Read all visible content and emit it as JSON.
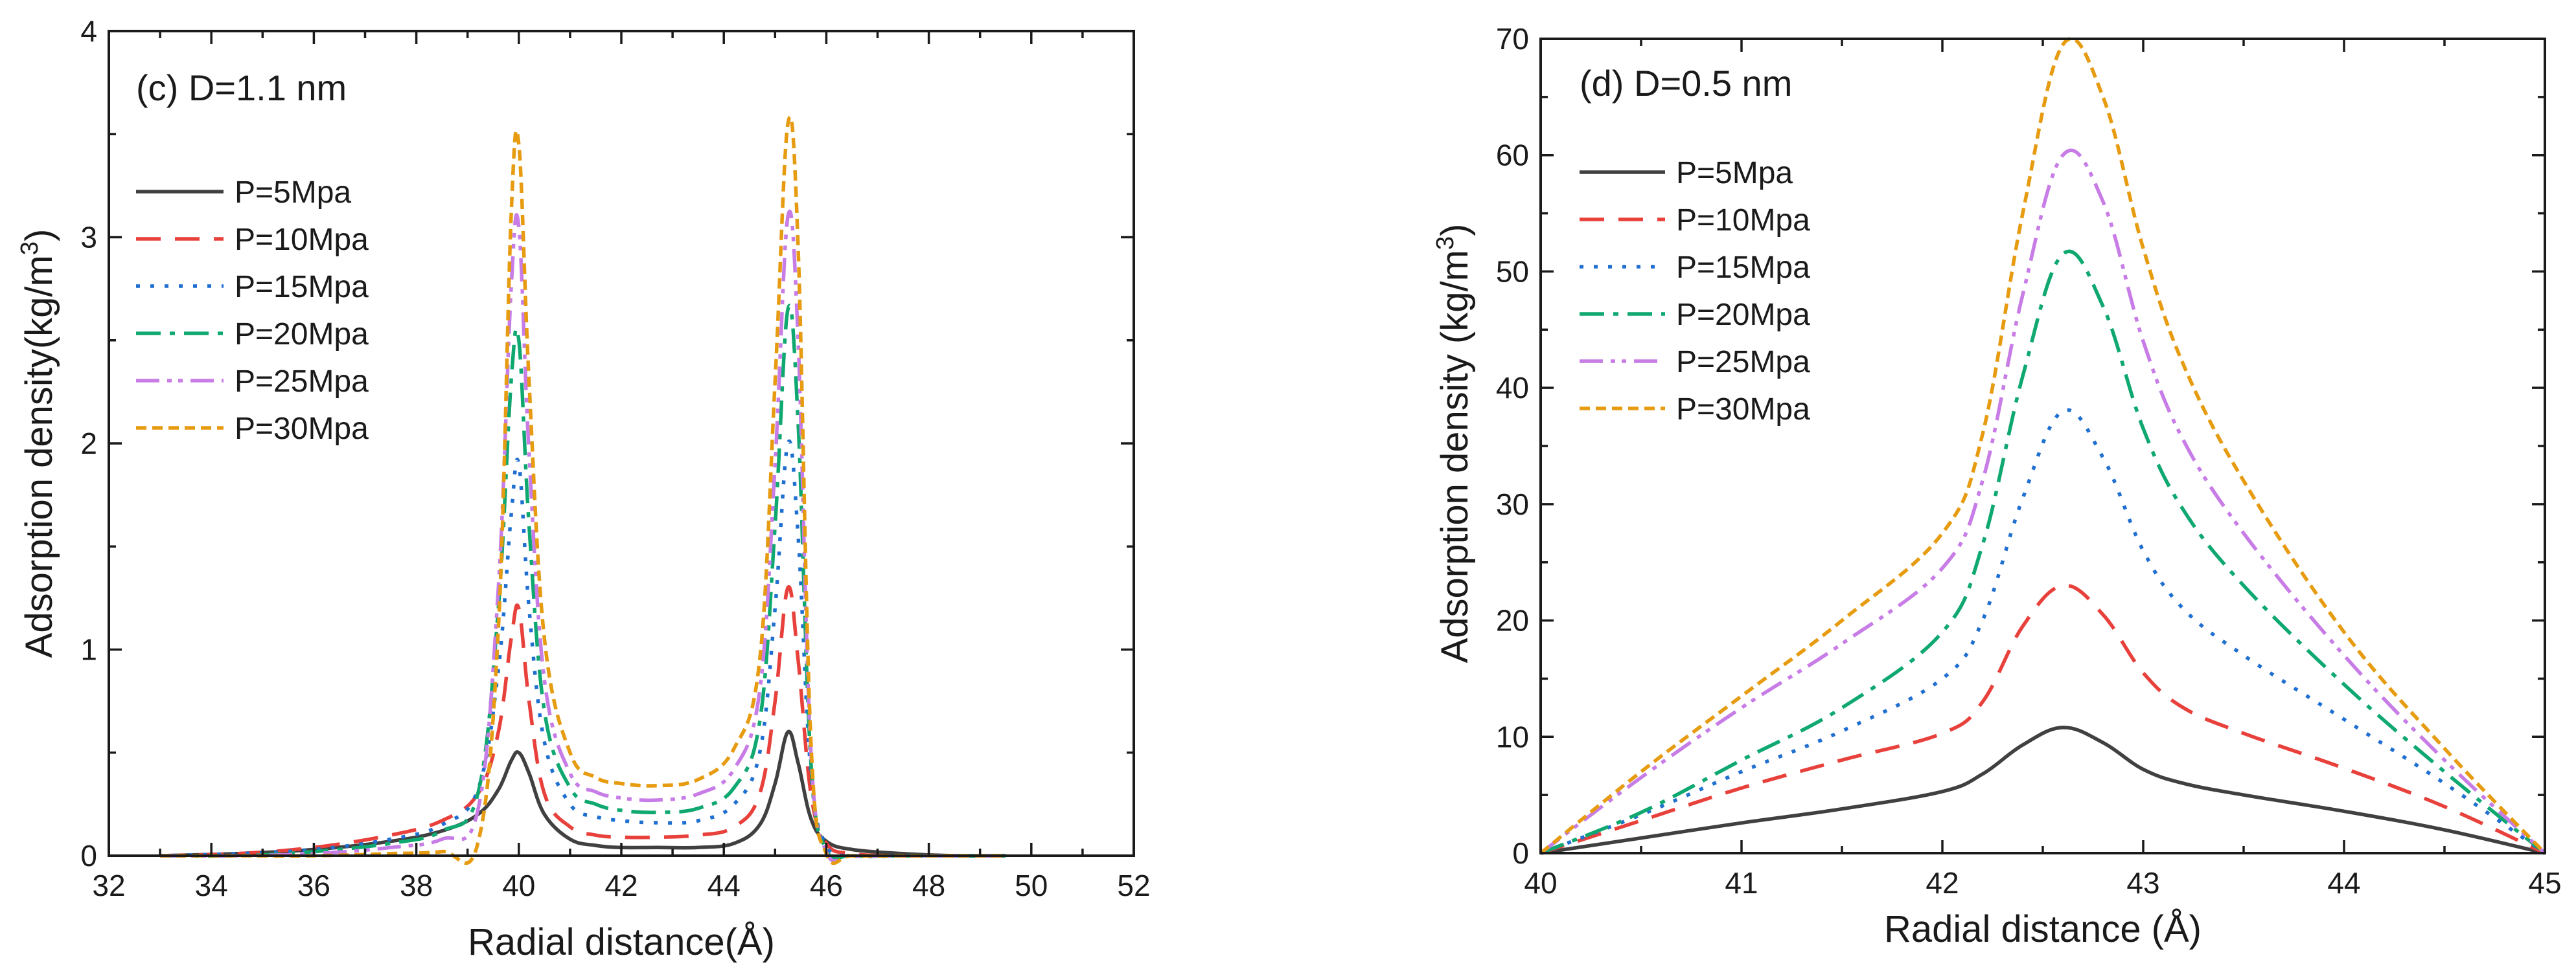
{
  "chart_data": [
    {
      "id": "c",
      "type": "line",
      "title": "(c) D=1.1 nm",
      "xlabel": "Radial distance(Å)",
      "ylabel": "Adsorption density(kg/m",
      "ylabel_sup": "3",
      "ylabel_tail": ")",
      "xlim": [
        32,
        52
      ],
      "ylim": [
        0,
        4
      ],
      "xticks": [
        32,
        34,
        36,
        38,
        40,
        42,
        44,
        46,
        48,
        50,
        52
      ],
      "yticks": [
        0,
        1,
        2,
        3,
        4
      ],
      "xtick_labels": [
        "32",
        "34",
        "36",
        "38",
        "40",
        "42",
        "44",
        "46",
        "48",
        "50",
        "52"
      ],
      "ytick_labels": [
        "0",
        "1",
        "2",
        "3",
        "4"
      ],
      "legend_position": "upper-left",
      "series": [
        {
          "name": "P=5Mpa",
          "color": "#404040",
          "x": [
            33.0,
            34.5,
            36.0,
            37.5,
            38.5,
            39.2,
            39.6,
            39.85,
            40.0,
            40.2,
            40.5,
            41.0,
            41.5,
            42.0,
            42.7,
            43.5,
            44.2,
            44.7,
            45.0,
            45.25,
            45.45,
            45.7,
            46.0,
            46.5,
            47.5,
            48.5,
            49.5
          ],
          "y": [
            0.0,
            0.01,
            0.03,
            0.07,
            0.12,
            0.2,
            0.32,
            0.46,
            0.5,
            0.4,
            0.2,
            0.08,
            0.05,
            0.04,
            0.04,
            0.04,
            0.06,
            0.15,
            0.35,
            0.6,
            0.45,
            0.18,
            0.07,
            0.03,
            0.01,
            0.0,
            0.0
          ]
        },
        {
          "name": "P=10Mpa",
          "color": "#e8413c",
          "x": [
            33.0,
            34.5,
            36.0,
            37.5,
            38.5,
            39.2,
            39.6,
            39.85,
            40.0,
            40.2,
            40.5,
            41.0,
            41.5,
            42.0,
            42.7,
            43.5,
            44.2,
            44.7,
            45.0,
            45.25,
            45.45,
            45.7,
            46.0,
            46.5,
            47.5,
            48.5,
            49.5
          ],
          "y": [
            0.0,
            0.01,
            0.04,
            0.1,
            0.17,
            0.3,
            0.6,
            1.05,
            1.2,
            0.75,
            0.3,
            0.14,
            0.1,
            0.09,
            0.09,
            0.1,
            0.14,
            0.3,
            0.75,
            1.3,
            0.95,
            0.3,
            0.06,
            0.01,
            0.0,
            0.0,
            0.0
          ]
        },
        {
          "name": "P=15Mpa",
          "color": "#1f6fd1",
          "x": [
            33.0,
            34.5,
            36.0,
            37.5,
            38.5,
            39.2,
            39.6,
            39.85,
            40.0,
            40.2,
            40.5,
            41.0,
            41.5,
            42.0,
            42.7,
            43.5,
            44.2,
            44.7,
            45.0,
            45.25,
            45.45,
            45.7,
            46.0,
            46.5,
            47.5,
            48.5,
            49.5
          ],
          "y": [
            0.0,
            0.01,
            0.03,
            0.08,
            0.15,
            0.32,
            0.9,
            1.65,
            1.9,
            1.2,
            0.55,
            0.25,
            0.19,
            0.17,
            0.16,
            0.17,
            0.25,
            0.5,
            1.2,
            2.0,
            1.55,
            0.4,
            0.05,
            0.0,
            0.0,
            0.0,
            0.0
          ]
        },
        {
          "name": "P=20Mpa",
          "color": "#0fa870",
          "x": [
            33.0,
            34.5,
            36.0,
            37.5,
            38.5,
            39.2,
            39.6,
            39.85,
            40.0,
            40.2,
            40.5,
            41.0,
            41.5,
            42.0,
            42.7,
            43.5,
            44.2,
            44.7,
            45.0,
            45.25,
            45.45,
            45.7,
            46.0,
            46.5,
            47.5,
            48.5,
            49.5
          ],
          "y": [
            0.0,
            0.0,
            0.02,
            0.06,
            0.12,
            0.3,
            1.2,
            2.3,
            2.5,
            1.6,
            0.7,
            0.33,
            0.25,
            0.22,
            0.21,
            0.23,
            0.33,
            0.65,
            1.6,
            2.65,
            2.1,
            0.45,
            0.03,
            0.0,
            0.0,
            0.0,
            0.0
          ]
        },
        {
          "name": "P=25Mpa",
          "color": "#c77ce6",
          "x": [
            33.0,
            34.5,
            36.0,
            37.5,
            38.5,
            39.2,
            39.6,
            39.85,
            40.0,
            40.2,
            40.5,
            41.0,
            41.5,
            42.0,
            42.7,
            43.5,
            44.2,
            44.7,
            45.0,
            45.25,
            45.45,
            45.7,
            46.0,
            46.5,
            47.5,
            48.5,
            49.5
          ],
          "y": [
            0.0,
            0.0,
            0.01,
            0.04,
            0.08,
            0.22,
            1.3,
            2.75,
            3.05,
            1.95,
            0.85,
            0.4,
            0.31,
            0.28,
            0.27,
            0.3,
            0.42,
            0.8,
            1.9,
            3.1,
            2.5,
            0.5,
            0.02,
            0.0,
            0.0,
            0.0,
            0.0
          ]
        },
        {
          "name": "P=30Mpa",
          "color": "#e69b10",
          "x": [
            33.0,
            34.5,
            36.0,
            37.5,
            38.5,
            39.2,
            39.6,
            39.85,
            40.0,
            40.2,
            40.5,
            41.0,
            41.5,
            42.0,
            42.7,
            43.5,
            44.2,
            44.7,
            45.0,
            45.25,
            45.45,
            45.7,
            46.0,
            46.5,
            47.5,
            48.5,
            49.5
          ],
          "y": [
            0.0,
            0.0,
            0.0,
            0.01,
            0.02,
            0.06,
            1.1,
            3.1,
            3.45,
            2.3,
            1.05,
            0.5,
            0.38,
            0.35,
            0.34,
            0.37,
            0.52,
            0.95,
            2.3,
            3.55,
            2.95,
            0.55,
            0.01,
            0.0,
            0.0,
            0.0,
            0.0
          ]
        }
      ]
    },
    {
      "id": "d",
      "type": "line",
      "title": "(d) D=0.5 nm",
      "xlabel": "Radial distance (Å)",
      "ylabel": "Adsorption density (kg/m",
      "ylabel_sup": "3",
      "ylabel_tail": ")",
      "xlim": [
        40,
        45
      ],
      "ylim": [
        0,
        70
      ],
      "xticks": [
        40,
        41,
        42,
        43,
        44,
        45
      ],
      "yticks": [
        0,
        10,
        20,
        30,
        40,
        50,
        60,
        70
      ],
      "xtick_labels": [
        "40",
        "41",
        "42",
        "43",
        "44",
        "45"
      ],
      "ytick_labels": [
        "0",
        "10",
        "20",
        "30",
        "40",
        "50",
        "60",
        "70"
      ],
      "legend_position": "upper-left",
      "series": [
        {
          "name": "P=5Mpa",
          "color": "#404040",
          "x": [
            40.0,
            40.5,
            41.0,
            41.5,
            42.0,
            42.2,
            42.4,
            42.6,
            42.8,
            43.0,
            43.2,
            43.5,
            44.0,
            44.5,
            45.0
          ],
          "y": [
            0.0,
            1.3,
            2.6,
            3.8,
            5.3,
            6.8,
            9.3,
            10.8,
            9.5,
            7.2,
            6.0,
            5.0,
            3.6,
            2.0,
            0.0
          ]
        },
        {
          "name": "P=10Mpa",
          "color": "#e8413c",
          "x": [
            40.0,
            40.5,
            41.0,
            41.5,
            42.0,
            42.2,
            42.4,
            42.6,
            42.8,
            43.0,
            43.2,
            43.5,
            44.0,
            44.5,
            45.0
          ],
          "y": [
            0.0,
            2.8,
            5.6,
            8.0,
            10.3,
            13.0,
            19.5,
            23.0,
            20.5,
            15.5,
            12.5,
            10.3,
            7.3,
            4.0,
            0.0
          ]
        },
        {
          "name": "P=15Mpa",
          "color": "#1f6fd1",
          "x": [
            40.0,
            40.5,
            41.0,
            41.5,
            42.0,
            42.2,
            42.4,
            42.6,
            42.8,
            43.0,
            43.2,
            43.5,
            44.0,
            44.5,
            45.0
          ],
          "y": [
            0.0,
            3.3,
            7.0,
            10.5,
            15.0,
            20.0,
            30.5,
            38.0,
            34.0,
            26.0,
            21.0,
            17.0,
            11.5,
            6.0,
            0.0
          ]
        },
        {
          "name": "P=20Mpa",
          "color": "#0fa870",
          "x": [
            40.0,
            40.5,
            41.0,
            41.5,
            42.0,
            42.2,
            42.4,
            42.6,
            42.8,
            43.0,
            43.2,
            43.5,
            44.0,
            44.5,
            45.0
          ],
          "y": [
            0.0,
            3.5,
            8.0,
            12.5,
            19.0,
            26.5,
            41.0,
            51.5,
            47.0,
            36.5,
            29.5,
            23.0,
            14.5,
            7.0,
            0.0
          ]
        },
        {
          "name": "P=25Mpa",
          "color": "#c77ce6",
          "x": [
            40.0,
            40.5,
            41.0,
            41.5,
            42.0,
            42.2,
            42.4,
            42.6,
            42.8,
            43.0,
            43.2,
            43.5,
            44.0,
            44.5,
            45.0
          ],
          "y": [
            0.0,
            6.5,
            12.5,
            18.0,
            24.5,
            32.0,
            48.0,
            60.0,
            56.0,
            44.0,
            35.5,
            27.5,
            17.0,
            8.0,
            0.0
          ]
        },
        {
          "name": "P=30Mpa",
          "color": "#e69b10",
          "x": [
            40.0,
            40.5,
            41.0,
            41.5,
            42.0,
            42.2,
            42.4,
            42.6,
            42.8,
            43.0,
            43.2,
            43.5,
            44.0,
            44.5,
            45.0
          ],
          "y": [
            0.0,
            7.0,
            13.5,
            20.0,
            27.5,
            36.0,
            55.0,
            69.5,
            65.0,
            52.0,
            42.0,
            32.0,
            19.0,
            9.0,
            0.0
          ]
        }
      ]
    }
  ]
}
